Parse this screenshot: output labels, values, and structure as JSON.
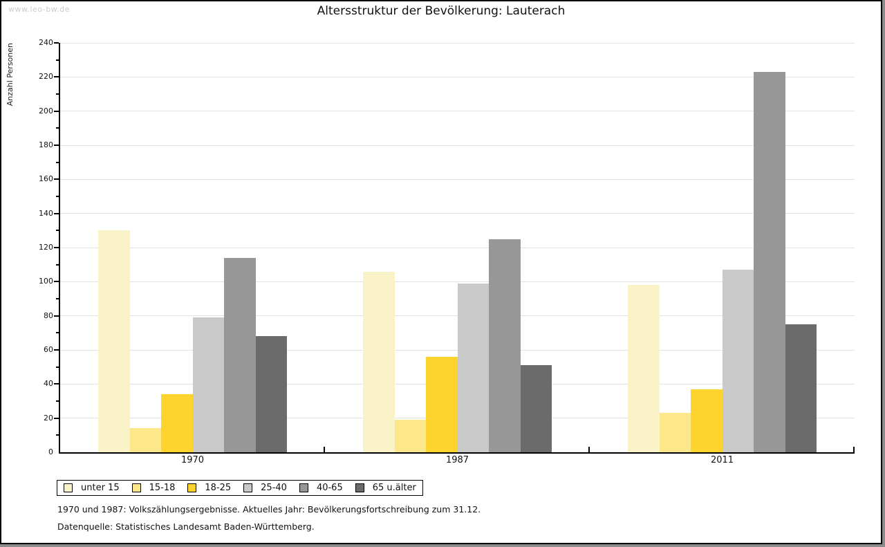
{
  "watermark": "www.leo-bw.de",
  "title": "Altersstruktur der Bevölkerung: Lauterach",
  "footer": {
    "line1": "1970 und 1987: Volkszählungsergebnisse. Aktuelles Jahr: Bevölkerungsfortschreibung zum 31.12.",
    "line2": "Datenquelle: Statistisches Landesamt Baden-Württemberg."
  },
  "chart_data": {
    "type": "bar",
    "title": "Altersstruktur der Bevölkerung: Lauterach",
    "ylabel": "Anzahl Personen",
    "xlabel": "",
    "categories": [
      "1970",
      "1987",
      "2011"
    ],
    "series": [
      {
        "name": "unter 15",
        "color": "#faf3c8",
        "values": [
          130,
          106,
          98
        ]
      },
      {
        "name": "15-18",
        "color": "#fce88a",
        "values": [
          14,
          19,
          23
        ]
      },
      {
        "name": "18-25",
        "color": "#fcd42d",
        "values": [
          34,
          56,
          37
        ]
      },
      {
        "name": "25-40",
        "color": "#c9c9c9",
        "values": [
          79,
          99,
          107
        ]
      },
      {
        "name": "40-65",
        "color": "#979797",
        "values": [
          114,
          125,
          223
        ]
      },
      {
        "name": "65 u.älter",
        "color": "#6b6b6b",
        "values": [
          68,
          51,
          75
        ]
      }
    ],
    "ylim": [
      0,
      240
    ],
    "ytick_major_step": 20,
    "ytick_minor_step": 10,
    "grid": true,
    "legend_position": "bottom",
    "axis_color": "#000000",
    "grid_color": "#e2e2e2"
  }
}
